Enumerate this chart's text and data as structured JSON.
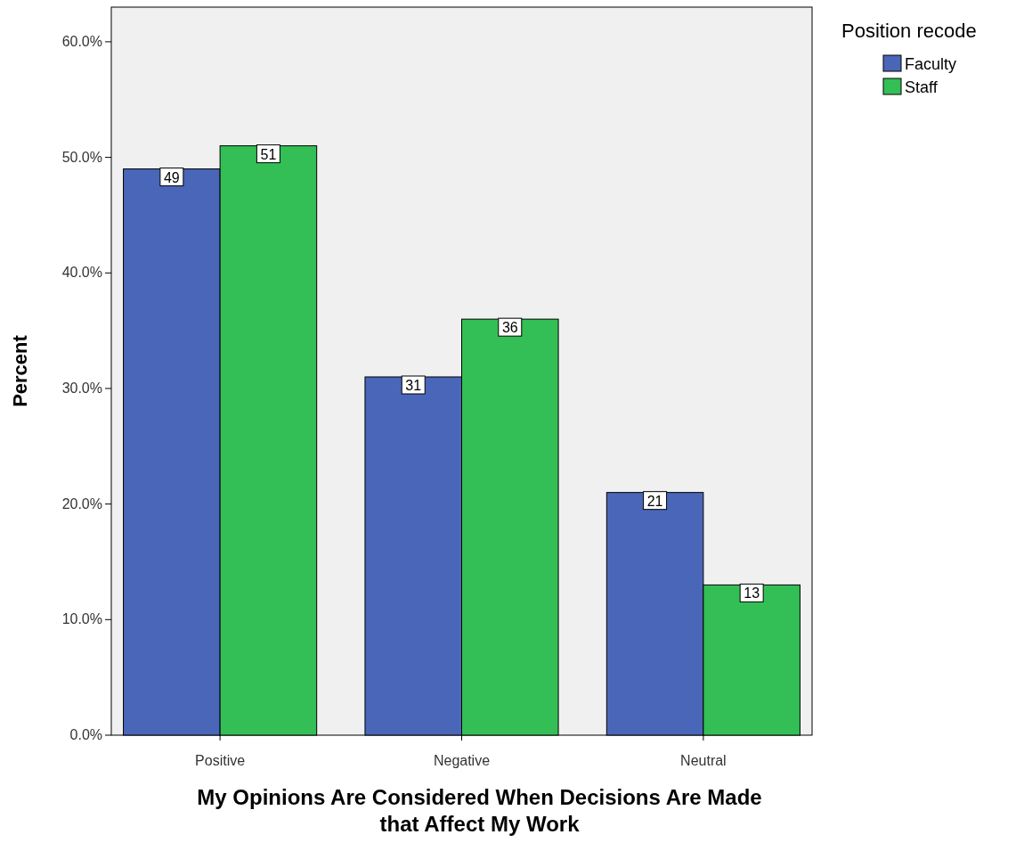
{
  "chart_data": {
    "type": "bar",
    "xlabel": "My Opinions Are Considered When Decisions Are Made that Affect My Work",
    "ylabel": "Percent",
    "legend_title": "Position recode",
    "categories": [
      "Positive",
      "Negative",
      "Neutral"
    ],
    "series": [
      {
        "name": "Faculty",
        "color": "#4a66b8",
        "values": [
          49,
          31,
          21
        ]
      },
      {
        "name": "Staff",
        "color": "#33bf55",
        "values": [
          51,
          36,
          13
        ]
      }
    ],
    "ylim": [
      0,
      63
    ],
    "yticks": [
      {
        "value": 0,
        "label": "0.0%"
      },
      {
        "value": 10,
        "label": "10.0%"
      },
      {
        "value": 20,
        "label": "20.0%"
      },
      {
        "value": 30,
        "label": "30.0%"
      },
      {
        "value": 40,
        "label": "40.0%"
      },
      {
        "value": 50,
        "label": "50.0%"
      },
      {
        "value": 60,
        "label": "60.0%"
      }
    ],
    "data_labels": true,
    "legend": "top right",
    "grid": false
  }
}
